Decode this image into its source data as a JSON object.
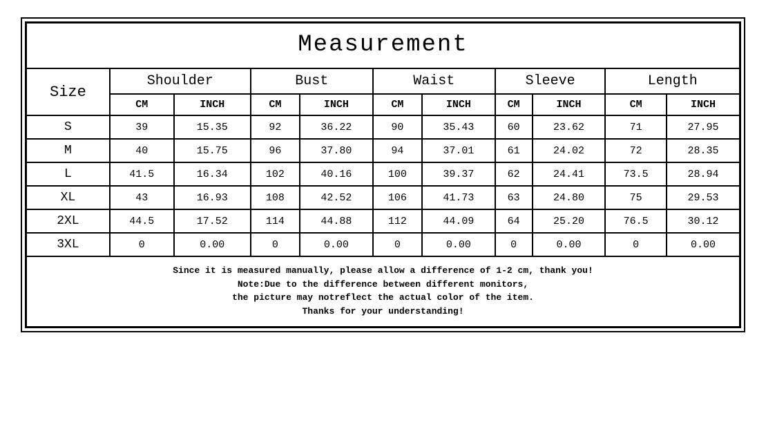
{
  "title": "Measurement",
  "size_label": "Size",
  "columns": [
    "Shoulder",
    "Bust",
    "Waist",
    "Sleeve",
    "Length"
  ],
  "units": [
    "CM",
    "INCH"
  ],
  "rows": [
    {
      "size": "S",
      "vals": [
        "39",
        "15.35",
        "92",
        "36.22",
        "90",
        "35.43",
        "60",
        "23.62",
        "71",
        "27.95"
      ]
    },
    {
      "size": "M",
      "vals": [
        "40",
        "15.75",
        "96",
        "37.80",
        "94",
        "37.01",
        "61",
        "24.02",
        "72",
        "28.35"
      ]
    },
    {
      "size": "L",
      "vals": [
        "41.5",
        "16.34",
        "102",
        "40.16",
        "100",
        "39.37",
        "62",
        "24.41",
        "73.5",
        "28.94"
      ]
    },
    {
      "size": "XL",
      "vals": [
        "43",
        "16.93",
        "108",
        "42.52",
        "106",
        "41.73",
        "63",
        "24.80",
        "75",
        "29.53"
      ]
    },
    {
      "size": "2XL",
      "vals": [
        "44.5",
        "17.52",
        "114",
        "44.88",
        "112",
        "44.09",
        "64",
        "25.20",
        "76.5",
        "30.12"
      ]
    },
    {
      "size": "3XL",
      "vals": [
        "0",
        "0.00",
        "0",
        "0.00",
        "0",
        "0.00",
        "0",
        "0.00",
        "0",
        "0.00"
      ]
    }
  ],
  "notes": [
    "Since it is measured manually, please allow a difference of 1-2 cm, thank you!",
    "Note:Due to the difference between different monitors,",
    "the picture may notreflect the actual color of the item.",
    "Thanks for your understanding!"
  ],
  "style": {
    "type": "table",
    "background_color": "#ffffff",
    "border_color": "#000000",
    "text_color": "#000000",
    "font_family": "Courier New, monospace",
    "title_fontsize": 34,
    "col_header_fontsize": 20,
    "unit_header_fontsize": 15,
    "size_cell_fontsize": 18,
    "value_fontsize": 15,
    "note_fontsize": 13,
    "outer_border_width": 2,
    "inner_border_width": 1,
    "double_border": true,
    "column_span_per_measure": 2
  }
}
